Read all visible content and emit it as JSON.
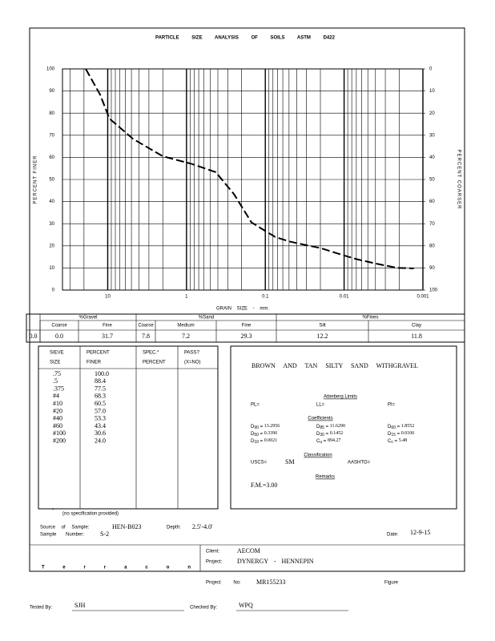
{
  "header": {
    "title": "PARTICLE SIZE ANALYSIS OF SOILS ASTM D422"
  },
  "chart_data": {
    "type": "line",
    "x_label": "GRAIN SIZE - mm.",
    "y_label": "PERCENT FINER",
    "y2_label": "PERCENT COARSER",
    "x": [
      19,
      12.5,
      9.5,
      4.75,
      2.0,
      0.85,
      0.425,
      0.25,
      0.15,
      0.075,
      0.05,
      0.032,
      0.02,
      0.012,
      0.007,
      0.004,
      0.0021,
      0.0013
    ],
    "values": [
      100.0,
      88.4,
      77.5,
      68.3,
      60.5,
      57.0,
      53.3,
      43.4,
      30.6,
      24.0,
      22,
      20.5,
      19,
      16.5,
      14,
      12,
      10,
      9.8
    ],
    "color": "#000000",
    "log_x": true,
    "xlim": [
      37.5,
      0.001
    ],
    "xticks": [
      10,
      1,
      0.1,
      0.01,
      0.001
    ],
    "x_minor_grid": [
      30,
      20,
      9,
      8,
      7,
      6,
      5,
      4,
      3,
      2,
      0.9,
      0.8,
      0.7,
      0.6,
      0.5,
      0.4,
      0.3,
      0.2,
      0.09,
      0.08,
      0.07,
      0.06,
      0.05,
      0.04,
      0.03,
      0.02,
      0.009,
      0.008,
      0.007,
      0.006,
      0.005,
      0.004,
      0.003,
      0.002
    ],
    "ylim": [
      0,
      100
    ],
    "yticks": [
      0,
      10,
      20,
      30,
      40,
      50,
      60,
      70,
      80,
      90,
      100
    ],
    "y2lim": [
      100,
      0
    ],
    "y2ticks": [
      0,
      10,
      20,
      30,
      40,
      50,
      60,
      70,
      80,
      90,
      100
    ],
    "grid": true
  },
  "gradation": {
    "groups": [
      "%Gravel",
      "%Sand",
      "%Fines"
    ],
    "subheaders": [
      "Coarse",
      "Fine",
      "Coarse",
      "Medium",
      "Fine",
      "Silt",
      "Clay"
    ],
    "values": [
      "0.0",
      "0.0",
      "31.7",
      "7.8",
      "7.2",
      "29.3",
      "12.2",
      "11.8"
    ]
  },
  "sieve_table": {
    "headers": [
      [
        "SIEVE",
        "SIZE"
      ],
      [
        "PERCENT",
        "FINER"
      ],
      [
        "SPEC.*",
        "PERCENT"
      ],
      [
        "PASS?",
        "(X=NO)"
      ]
    ],
    "rows": [
      [
        ".75",
        "100.0"
      ],
      [
        ".5",
        "88.4"
      ],
      [
        ".375",
        "77.5"
      ],
      [
        "#4",
        "68.3"
      ],
      [
        "#10",
        "60.5"
      ],
      [
        "#20",
        "57.0"
      ],
      [
        "#40",
        "53.3"
      ],
      [
        "#60",
        "43.4"
      ],
      [
        "#100",
        "30.6"
      ],
      [
        "#200",
        "24.0"
      ]
    ],
    "footnote_mark": "*",
    "footnote": "(no specification provided)"
  },
  "soil": {
    "description": "BROWN AND TAN SILTY SAND WITHGRAVEL",
    "atterberg_title": "Atterberg Limits",
    "pl": "PL=",
    "ll": "LL=",
    "pi": "PI=",
    "coefficients_title": "Coefficients",
    "coefficients": [
      {
        "label": "D",
        "sub": "90",
        "eq": " = ",
        "value": "13.2956"
      },
      {
        "label": "D",
        "sub": "85",
        "eq": " = ",
        "value": "11.6290"
      },
      {
        "label": "D",
        "sub": "60",
        "eq": " = ",
        "value": "1.8552"
      },
      {
        "label": "D",
        "sub": "50",
        "eq": " = ",
        "value": "0.3396"
      },
      {
        "label": "D",
        "sub": "30",
        "eq": " = ",
        "value": "0.1452"
      },
      {
        "label": "D",
        "sub": "15",
        "eq": " = ",
        "value": "0.0106"
      },
      {
        "label": "D",
        "sub": "10",
        "eq": " = ",
        "value": "0.0021"
      },
      {
        "label": "C",
        "sub": "u",
        "eq": " = ",
        "value": "894.27"
      },
      {
        "label": "C",
        "sub": "c",
        "eq": " = ",
        "value": "5.48"
      }
    ],
    "classification_title": "Classification",
    "uscs_label": "USCS=",
    "uscs": "SM",
    "aashto_label": "AASHTO=",
    "remarks_title": "Remarks",
    "remarks": "F.M.=3.00"
  },
  "sample": {
    "source_label": "Source of Sample:",
    "source": "HEN-B023",
    "depth_label": "Depth:",
    "depth": "2.5'-4.0'",
    "number_label": "Sample Number:",
    "number": "S-2",
    "date_label": "Date:",
    "date": "12-9-15"
  },
  "footer": {
    "logo": "Terracon",
    "client_label": "Client:",
    "client": "AECOM",
    "project_label": "Project:",
    "project": "DYNERGY - HENNEPIN",
    "project_no_label": "Project No:",
    "project_no": "MR155233",
    "figure_label": "Figure",
    "tested_by_label": "Tested By:",
    "tested_by": "SJH",
    "checked_by_label": "Checked By:",
    "checked_by": "WPQ"
  }
}
